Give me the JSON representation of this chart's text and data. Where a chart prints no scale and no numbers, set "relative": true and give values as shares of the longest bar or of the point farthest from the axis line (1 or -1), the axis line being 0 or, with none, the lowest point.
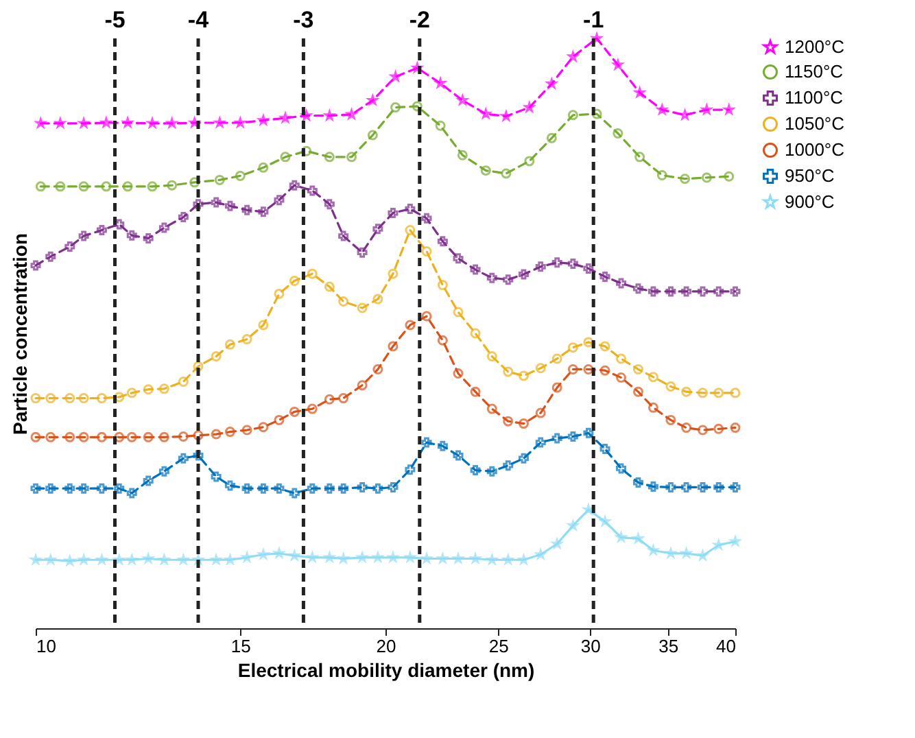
{
  "chart_data": {
    "type": "line",
    "relative": true,
    "xlabel": "Electrical mobility diameter (nm)",
    "ylabel": "Particle concentration",
    "log": "x",
    "xlim": [
      10,
      40
    ],
    "xticks": [
      10,
      15,
      20,
      25,
      30,
      35,
      40
    ],
    "grid": false,
    "legend": "right",
    "ref_lines": [
      {
        "axis": "x",
        "value": 11.7,
        "color": "#222222",
        "line_style": "dashed"
      },
      {
        "axis": "x",
        "value": 13.8,
        "color": "#222222",
        "line_style": "dashed"
      },
      {
        "axis": "x",
        "value": 17.0,
        "color": "#222222",
        "line_style": "dashed"
      },
      {
        "axis": "x",
        "value": 21.4,
        "color": "#222222",
        "line_style": "dashed"
      },
      {
        "axis": "x",
        "value": 30.2,
        "color": "#222222",
        "line_style": "dashed"
      }
    ],
    "annotations": [
      "-5",
      "-4",
      "-3",
      "-2",
      "-1"
    ],
    "series": [
      {
        "name": "1200°C",
        "color": "#ff00ff",
        "marker": "star",
        "line_style": "dashed",
        "x": [
          10.1,
          10.5,
          11.0,
          11.5,
          12.0,
          12.6,
          13.1,
          13.7,
          14.4,
          15.0,
          15.7,
          16.4,
          17.1,
          17.9,
          18.7,
          19.5,
          20.4,
          21.3,
          22.3,
          23.3,
          24.4,
          25.4,
          26.6,
          27.8,
          29.0,
          30.4,
          31.7,
          33.1,
          34.6,
          36.2,
          37.8,
          39.5
        ],
        "values": [
          0.856,
          0.856,
          0.856,
          0.857,
          0.857,
          0.856,
          0.856,
          0.857,
          0.857,
          0.857,
          0.861,
          0.865,
          0.869,
          0.869,
          0.871,
          0.895,
          0.935,
          0.95,
          0.924,
          0.895,
          0.872,
          0.868,
          0.883,
          0.923,
          0.969,
          1.0,
          0.955,
          0.908,
          0.879,
          0.87,
          0.879,
          0.879
        ]
      },
      {
        "name": "1150°C",
        "color": "#77ac30",
        "marker": "circle",
        "line_style": "dashed",
        "x": [
          10.1,
          10.5,
          11.0,
          11.5,
          12.0,
          12.6,
          13.1,
          13.7,
          14.4,
          15.0,
          15.7,
          16.4,
          17.1,
          17.9,
          18.7,
          19.5,
          20.4,
          21.3,
          22.3,
          23.3,
          24.4,
          25.4,
          26.6,
          27.8,
          29.0,
          30.4,
          31.7,
          33.1,
          34.6,
          36.2,
          37.8,
          39.5
        ],
        "values": [
          0.749,
          0.749,
          0.749,
          0.749,
          0.749,
          0.749,
          0.751,
          0.756,
          0.76,
          0.767,
          0.781,
          0.799,
          0.809,
          0.799,
          0.799,
          0.836,
          0.883,
          0.885,
          0.852,
          0.802,
          0.776,
          0.771,
          0.792,
          0.831,
          0.87,
          0.872,
          0.839,
          0.799,
          0.768,
          0.762,
          0.764,
          0.766
        ]
      },
      {
        "name": "1100°C",
        "color": "#7e2f8e",
        "marker": "cross",
        "line_style": "dashed",
        "x": [
          10.0,
          10.3,
          10.7,
          11.0,
          11.4,
          11.8,
          12.1,
          12.5,
          12.9,
          13.4,
          13.8,
          14.3,
          14.7,
          15.2,
          15.7,
          16.2,
          16.7,
          17.3,
          17.9,
          18.4,
          19.1,
          19.7,
          20.3,
          21.0,
          21.7,
          22.4,
          23.1,
          23.9,
          24.7,
          25.5,
          26.3,
          27.2,
          28.1,
          29.0,
          29.9,
          30.9,
          31.9,
          33.0,
          34.0,
          35.2,
          36.3,
          37.5,
          38.7,
          40.0
        ],
        "values": [
          0.615,
          0.63,
          0.647,
          0.665,
          0.675,
          0.685,
          0.666,
          0.661,
          0.679,
          0.697,
          0.719,
          0.722,
          0.716,
          0.709,
          0.706,
          0.726,
          0.751,
          0.742,
          0.719,
          0.665,
          0.637,
          0.677,
          0.704,
          0.711,
          0.695,
          0.656,
          0.627,
          0.608,
          0.594,
          0.591,
          0.6,
          0.613,
          0.62,
          0.618,
          0.61,
          0.596,
          0.585,
          0.576,
          0.571,
          0.571,
          0.571,
          0.571,
          0.571,
          0.571
        ]
      },
      {
        "name": "1050°C",
        "color": "#edb120",
        "marker": "circle",
        "line_style": "dashed",
        "x": [
          10.0,
          10.3,
          10.7,
          11.0,
          11.4,
          11.8,
          12.1,
          12.5,
          12.9,
          13.4,
          13.8,
          14.3,
          14.7,
          15.2,
          15.7,
          16.2,
          16.7,
          17.3,
          17.9,
          18.4,
          19.1,
          19.7,
          20.3,
          21.0,
          21.7,
          22.4,
          23.1,
          23.9,
          24.7,
          25.5,
          26.3,
          27.2,
          28.1,
          29.0,
          29.9,
          30.9,
          31.9,
          33.0,
          34.0,
          35.2,
          36.3,
          37.5,
          38.7,
          40.0
        ],
        "values": [
          0.39,
          0.39,
          0.39,
          0.39,
          0.39,
          0.392,
          0.399,
          0.405,
          0.406,
          0.418,
          0.444,
          0.461,
          0.481,
          0.49,
          0.514,
          0.567,
          0.589,
          0.601,
          0.579,
          0.554,
          0.543,
          0.558,
          0.601,
          0.675,
          0.639,
          0.582,
          0.536,
          0.5,
          0.461,
          0.435,
          0.428,
          0.441,
          0.457,
          0.476,
          0.485,
          0.478,
          0.457,
          0.439,
          0.426,
          0.41,
          0.401,
          0.399,
          0.399,
          0.399
        ]
      },
      {
        "name": "1000°C",
        "color": "#d95319",
        "marker": "circle",
        "line_style": "dashed",
        "x": [
          10.0,
          10.3,
          10.7,
          11.0,
          11.4,
          11.8,
          12.1,
          12.5,
          12.9,
          13.4,
          13.8,
          14.3,
          14.7,
          15.2,
          15.7,
          16.2,
          16.7,
          17.3,
          17.9,
          18.4,
          19.1,
          19.7,
          20.3,
          21.0,
          21.7,
          22.4,
          23.1,
          23.9,
          24.7,
          25.5,
          26.3,
          27.2,
          28.1,
          29.0,
          29.9,
          30.9,
          31.9,
          33.0,
          34.0,
          35.2,
          36.3,
          37.5,
          38.7,
          40.0
        ],
        "values": [
          0.324,
          0.324,
          0.324,
          0.324,
          0.324,
          0.324,
          0.324,
          0.324,
          0.324,
          0.325,
          0.327,
          0.329,
          0.333,
          0.336,
          0.341,
          0.353,
          0.367,
          0.372,
          0.388,
          0.39,
          0.412,
          0.439,
          0.478,
          0.514,
          0.529,
          0.488,
          0.432,
          0.401,
          0.372,
          0.351,
          0.347,
          0.365,
          0.408,
          0.439,
          0.439,
          0.437,
          0.425,
          0.401,
          0.374,
          0.353,
          0.34,
          0.336,
          0.338,
          0.34
        ]
      },
      {
        "name": "950°C",
        "color": "#0072bd",
        "marker": "cross",
        "line_style": "dashed",
        "x": [
          10.0,
          10.3,
          10.7,
          11.0,
          11.4,
          11.8,
          12.1,
          12.5,
          12.9,
          13.4,
          13.8,
          14.3,
          14.7,
          15.2,
          15.7,
          16.2,
          16.7,
          17.3,
          17.9,
          18.4,
          19.1,
          19.7,
          20.3,
          21.0,
          21.7,
          22.4,
          23.1,
          23.9,
          24.7,
          25.5,
          26.3,
          27.2,
          28.1,
          29.0,
          29.9,
          30.9,
          31.9,
          33.0,
          34.0,
          35.2,
          36.3,
          37.5,
          38.7,
          40.0
        ],
        "values": [
          0.237,
          0.237,
          0.237,
          0.237,
          0.237,
          0.237,
          0.229,
          0.25,
          0.266,
          0.288,
          0.293,
          0.257,
          0.242,
          0.237,
          0.237,
          0.237,
          0.229,
          0.237,
          0.237,
          0.237,
          0.239,
          0.237,
          0.239,
          0.269,
          0.315,
          0.309,
          0.293,
          0.268,
          0.266,
          0.276,
          0.288,
          0.315,
          0.322,
          0.325,
          0.331,
          0.304,
          0.271,
          0.247,
          0.24,
          0.239,
          0.239,
          0.239,
          0.239,
          0.239
        ]
      },
      {
        "name": "900°C",
        "color": "#8fdcf5",
        "marker": "star",
        "line_style": "solid",
        "x": [
          10.0,
          10.3,
          10.7,
          11.0,
          11.4,
          11.8,
          12.1,
          12.5,
          12.9,
          13.4,
          13.8,
          14.3,
          14.7,
          15.2,
          15.7,
          16.2,
          16.7,
          17.3,
          17.9,
          18.4,
          19.1,
          19.7,
          20.3,
          21.0,
          21.7,
          22.4,
          23.1,
          23.9,
          24.7,
          25.5,
          26.3,
          27.2,
          28.1,
          29.0,
          29.9,
          30.9,
          31.9,
          33.0,
          34.0,
          35.2,
          36.3,
          37.5,
          38.7,
          40.0
        ],
        "values": [
          0.116,
          0.116,
          0.114,
          0.116,
          0.116,
          0.116,
          0.116,
          0.118,
          0.116,
          0.116,
          0.116,
          0.116,
          0.116,
          0.12,
          0.125,
          0.127,
          0.123,
          0.12,
          0.12,
          0.118,
          0.12,
          0.12,
          0.12,
          0.12,
          0.118,
          0.118,
          0.118,
          0.118,
          0.116,
          0.116,
          0.116,
          0.125,
          0.143,
          0.174,
          0.201,
          0.181,
          0.154,
          0.152,
          0.132,
          0.127,
          0.127,
          0.123,
          0.141,
          0.147
        ]
      }
    ]
  }
}
